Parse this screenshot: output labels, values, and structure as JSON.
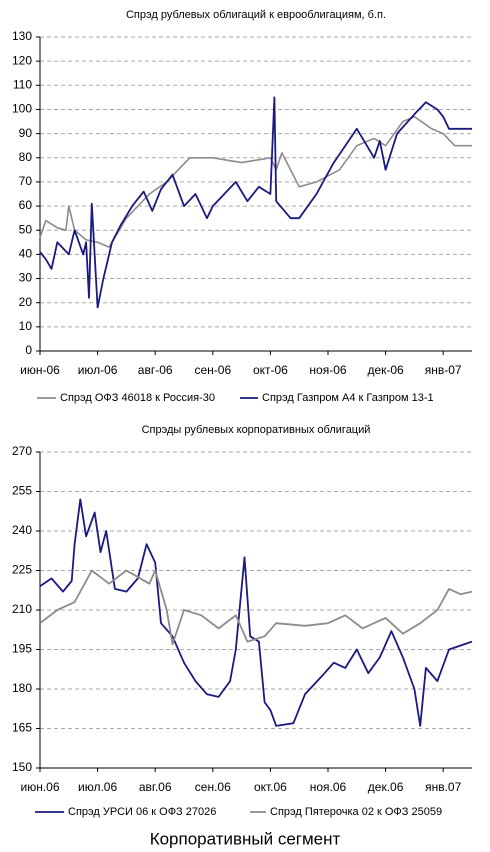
{
  "chart_data": [
    {
      "type": "line",
      "title": "Спрэд рублевых облигаций к еврооблигациям, б.п.",
      "xlim": [
        0,
        7.5
      ],
      "xticks": [
        {
          "value": 0,
          "label": "июн-06"
        },
        {
          "value": 1,
          "label": "июл-06"
        },
        {
          "value": 2,
          "label": "авг-06"
        },
        {
          "value": 3,
          "label": "сен-06"
        },
        {
          "value": 4,
          "label": "окт-06"
        },
        {
          "value": 5,
          "label": "ноя-06"
        },
        {
          "value": 6,
          "label": "дек-06"
        },
        {
          "value": 7,
          "label": "янв-07"
        }
      ],
      "ylim": [
        0,
        130
      ],
      "yticks": [
        0,
        10,
        20,
        30,
        40,
        50,
        60,
        70,
        80,
        90,
        100,
        110,
        120,
        130
      ],
      "grid": true,
      "series": [
        {
          "name": "Спрэд ОФЗ 46018 к Россия-30",
          "color": "#8c8c8c",
          "x": [
            0,
            0.1,
            0.3,
            0.45,
            0.5,
            0.6,
            0.8,
            1.0,
            1.2,
            1.5,
            1.7,
            1.9,
            2.2,
            2.4,
            2.6,
            3.0,
            3.5,
            4.0,
            4.1,
            4.2,
            4.5,
            4.8,
            5.2,
            5.5,
            5.8,
            6.0,
            6.3,
            6.5,
            6.8,
            7.0,
            7.2,
            7.5
          ],
          "values": [
            47,
            54,
            51,
            50,
            60,
            50,
            46,
            45,
            43,
            55,
            60,
            65,
            70,
            75,
            80,
            80,
            78,
            80,
            75,
            82,
            68,
            70,
            75,
            85,
            88,
            85,
            95,
            97,
            92,
            90,
            85,
            85
          ]
        },
        {
          "name": "Спрэд Газпром А4 к Газпром 13-1",
          "color": "#1a1a80",
          "x": [
            0,
            0.1,
            0.2,
            0.3,
            0.5,
            0.6,
            0.75,
            0.8,
            0.85,
            0.9,
            1.0,
            1.1,
            1.25,
            1.4,
            1.6,
            1.8,
            1.95,
            2.1,
            2.3,
            2.5,
            2.7,
            2.9,
            3.0,
            3.2,
            3.4,
            3.6,
            3.8,
            4.0,
            4.07,
            4.1,
            4.35,
            4.5,
            4.8,
            5.1,
            5.3,
            5.5,
            5.6,
            5.8,
            5.9,
            6.0,
            6.2,
            6.5,
            6.7,
            6.9,
            7.0,
            7.1,
            7.5
          ],
          "values": [
            41,
            38,
            34,
            45,
            40,
            50,
            40,
            45,
            22,
            61,
            18,
            30,
            45,
            52,
            60,
            66,
            58,
            67,
            73,
            60,
            65,
            55,
            60,
            65,
            70,
            62,
            68,
            65,
            105,
            62,
            55,
            55,
            65,
            78,
            85,
            92,
            88,
            80,
            87,
            75,
            90,
            98,
            103,
            100,
            97,
            92,
            92
          ]
        }
      ]
    },
    {
      "type": "line",
      "title": "Спрэды рублевых корпоративных облигаций",
      "xlim": [
        0,
        7.5
      ],
      "xticks": [
        {
          "value": 0,
          "label": "июн.06"
        },
        {
          "value": 1,
          "label": "июл.06"
        },
        {
          "value": 2,
          "label": "авг.06"
        },
        {
          "value": 3,
          "label": "сен.06"
        },
        {
          "value": 4,
          "label": "окт.06"
        },
        {
          "value": 5,
          "label": "ноя.06"
        },
        {
          "value": 6,
          "label": "дек.06"
        },
        {
          "value": 7,
          "label": "янв.07"
        }
      ],
      "ylim": [
        150,
        270
      ],
      "yticks": [
        150,
        165,
        180,
        195,
        210,
        225,
        240,
        255,
        270
      ],
      "grid": true,
      "series": [
        {
          "name": "Спрэд УРСИ 06 к ОФЗ 27026",
          "color": "#1a1a80",
          "x": [
            0,
            0.2,
            0.4,
            0.55,
            0.6,
            0.7,
            0.8,
            0.95,
            1.05,
            1.15,
            1.3,
            1.5,
            1.7,
            1.85,
            2.0,
            2.1,
            2.3,
            2.5,
            2.7,
            2.9,
            3.1,
            3.3,
            3.4,
            3.55,
            3.65,
            3.8,
            3.9,
            4.0,
            4.1,
            4.4,
            4.6,
            4.9,
            5.1,
            5.3,
            5.5,
            5.7,
            5.9,
            6.1,
            6.3,
            6.5,
            6.6,
            6.7,
            6.9,
            7.1,
            7.5
          ],
          "values": [
            219,
            222,
            217,
            221,
            235,
            252,
            238,
            247,
            232,
            240,
            218,
            217,
            222,
            235,
            228,
            205,
            200,
            190,
            183,
            178,
            177,
            183,
            195,
            230,
            200,
            198,
            175,
            172,
            166,
            167,
            178,
            185,
            190,
            188,
            195,
            186,
            192,
            202,
            192,
            180,
            166,
            188,
            183,
            195,
            198
          ]
        },
        {
          "name": "Спрэд Пятерочка 02 к ОФЗ 25059",
          "color": "#8c8c8c",
          "x": [
            0,
            0.3,
            0.6,
            0.9,
            1.2,
            1.5,
            1.9,
            2.0,
            2.2,
            2.3,
            2.5,
            2.8,
            3.1,
            3.4,
            3.6,
            3.9,
            4.1,
            4.6,
            5.0,
            5.3,
            5.6,
            6.0,
            6.3,
            6.6,
            6.9,
            7.1,
            7.3,
            7.5
          ],
          "values": [
            205,
            210,
            213,
            225,
            220,
            225,
            220,
            225,
            210,
            197,
            210,
            208,
            203,
            208,
            198,
            200,
            205,
            204,
            205,
            208,
            203,
            207,
            201,
            205,
            210,
            218,
            216,
            217
          ]
        }
      ]
    }
  ],
  "caption": "Корпоративный сегмент"
}
